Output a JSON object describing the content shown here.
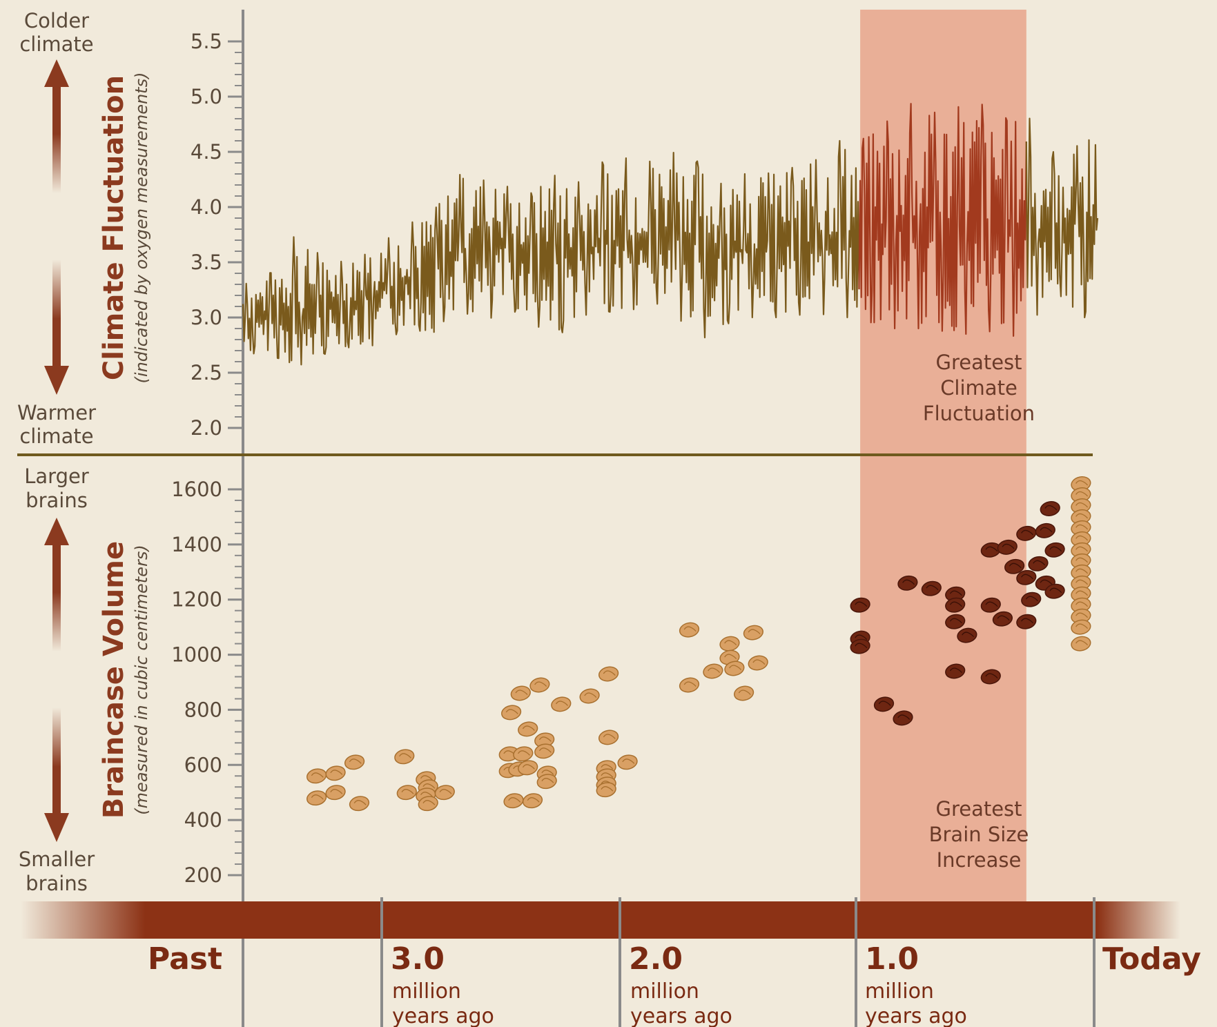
{
  "colors": {
    "background": "#f1eadb",
    "climate_line": "#7a5a1c",
    "highlight_band": "#e7a48b",
    "highlight_line": "#a23a1e",
    "timeline_bar": "#8c3215",
    "arrow": "#8b3a1f",
    "brain_light": "#d9a064",
    "brain_dark": "#6e2612",
    "axis": "#888888",
    "divider": "#6f5a1e",
    "text": "#5a4a3a",
    "timeline_text": "#7a2a12"
  },
  "climate_panel": {
    "title": "Climate Fluctuation",
    "subtitle": "(indicated by oxygen measurements)",
    "top_label": [
      "Colder",
      "climate"
    ],
    "bottom_label": [
      "Warmer",
      "climate"
    ],
    "band_label": [
      "Greatest",
      "Climate",
      "Fluctuation"
    ]
  },
  "brain_panel": {
    "title": "Braincase Volume",
    "subtitle": "(measured in cubic centimeters)",
    "top_label": [
      "Larger",
      "brains"
    ],
    "bottom_label": [
      "Smaller",
      "brains"
    ],
    "band_label": [
      "Greatest",
      "Brain Size",
      "Increase"
    ]
  },
  "timeline": {
    "past_label": "Past",
    "today_label": "Today",
    "ticks": [
      {
        "value": "3.0",
        "line1": "million",
        "line2": "years ago"
      },
      {
        "value": "2.0",
        "line1": "million",
        "line2": "years ago"
      },
      {
        "value": "1.0",
        "line1": "million",
        "line2": "years ago"
      }
    ]
  },
  "chart_data": [
    {
      "type": "line",
      "title": "Climate Fluctuation",
      "ylabel": "(indicated by oxygen measurements)",
      "xlabel": "million years ago",
      "xlim": [
        3.6,
        0
      ],
      "ylim": [
        1.8,
        5.6
      ],
      "y_ticks": [
        2.0,
        2.5,
        3.0,
        3.5,
        4.0,
        4.5,
        5.0,
        5.5
      ],
      "highlight_range": [
        1.0,
        0.3
      ],
      "x": [
        3.6,
        3.5,
        3.4,
        3.3,
        3.2,
        3.1,
        3.0,
        2.9,
        2.8,
        2.7,
        2.6,
        2.5,
        2.4,
        2.3,
        2.2,
        2.1,
        2.0,
        1.9,
        1.8,
        1.7,
        1.6,
        1.5,
        1.4,
        1.3,
        1.2,
        1.1,
        1.0,
        0.9,
        0.8,
        0.7,
        0.6,
        0.5,
        0.4,
        0.3,
        0.2,
        0.1,
        0.0
      ],
      "series": [
        {
          "mean": [
            2.95,
            3.0,
            3.05,
            3.05,
            3.1,
            3.15,
            3.25,
            3.35,
            3.45,
            3.6,
            3.6,
            3.65,
            3.6,
            3.6,
            3.6,
            3.65,
            3.7,
            3.7,
            3.75,
            3.75,
            3.6,
            3.6,
            3.6,
            3.65,
            3.65,
            3.7,
            3.75,
            3.75,
            3.8,
            3.75,
            3.8,
            3.8,
            3.75,
            3.75,
            3.8,
            3.85,
            3.9
          ],
          "low": [
            2.65,
            2.7,
            2.55,
            2.6,
            2.75,
            2.7,
            2.8,
            2.9,
            2.85,
            3.1,
            2.95,
            3.05,
            3.05,
            2.75,
            3.0,
            3.05,
            3.05,
            3.1,
            3.15,
            2.75,
            2.9,
            3.0,
            3.0,
            3.0,
            3.05,
            3.0,
            3.0,
            2.9,
            2.9,
            2.9,
            2.85,
            2.85,
            2.9,
            2.75,
            3.35,
            3.0,
            3.0
          ],
          "high": [
            3.3,
            3.35,
            3.75,
            3.6,
            3.5,
            3.55,
            3.7,
            3.85,
            3.95,
            4.3,
            4.25,
            4.2,
            4.1,
            4.3,
            4.2,
            4.4,
            4.45,
            4.4,
            4.5,
            4.45,
            4.2,
            4.3,
            4.3,
            4.35,
            4.4,
            4.6,
            4.6,
            4.75,
            4.95,
            4.85,
            4.9,
            4.95,
            4.8,
            4.85,
            4.5,
            4.5,
            4.9
          ]
        }
      ]
    },
    {
      "type": "scatter",
      "title": "Braincase Volume",
      "ylabel": "(measured in cubic centimeters)",
      "xlabel": "million years ago",
      "xlim": [
        3.6,
        0
      ],
      "ylim": [
        120,
        1720
      ],
      "y_ticks": [
        200,
        400,
        600,
        800,
        1000,
        1200,
        1400,
        1600
      ],
      "highlight_range": [
        1.0,
        0.3
      ],
      "series": [
        {
          "name": "",
          "color": "#d9a064",
          "points": [
            [
              3.29,
              560
            ],
            [
              3.21,
              570
            ],
            [
              3.13,
              610
            ],
            [
              3.29,
              480
            ],
            [
              3.21,
              500
            ],
            [
              3.11,
              460
            ],
            [
              2.92,
              630
            ],
            [
              2.91,
              500
            ],
            [
              2.83,
              550
            ],
            [
              2.82,
              520
            ],
            [
              2.83,
              490
            ],
            [
              2.82,
              460
            ],
            [
              2.75,
              500
            ],
            [
              2.43,
              860
            ],
            [
              2.35,
              890
            ],
            [
              2.26,
              820
            ],
            [
              2.14,
              850
            ],
            [
              2.06,
              930
            ],
            [
              2.47,
              790
            ],
            [
              2.4,
              730
            ],
            [
              2.33,
              690
            ],
            [
              2.33,
              650
            ],
            [
              2.06,
              700
            ],
            [
              2.48,
              640
            ],
            [
              2.42,
              640
            ],
            [
              2.48,
              580
            ],
            [
              2.44,
              585
            ],
            [
              2.4,
              590
            ],
            [
              2.32,
              570
            ],
            [
              2.32,
              540
            ],
            [
              2.07,
              590
            ],
            [
              2.07,
              560
            ],
            [
              2.07,
              530
            ],
            [
              2.07,
              510
            ],
            [
              1.98,
              610
            ],
            [
              2.46,
              470
            ],
            [
              2.38,
              470
            ],
            [
              1.72,
              1090
            ],
            [
              1.72,
              890
            ],
            [
              1.62,
              940
            ],
            [
              1.55,
              1040
            ],
            [
              1.55,
              990
            ],
            [
              1.53,
              950
            ],
            [
              1.45,
              1080
            ],
            [
              1.43,
              970
            ],
            [
              1.49,
              860
            ],
            [
              0.07,
              1620
            ],
            [
              0.07,
              1580
            ],
            [
              0.07,
              1540
            ],
            [
              0.07,
              1500
            ],
            [
              0.07,
              1460
            ],
            [
              0.07,
              1420
            ],
            [
              0.07,
              1380
            ],
            [
              0.07,
              1340
            ],
            [
              0.07,
              1300
            ],
            [
              0.07,
              1260
            ],
            [
              0.07,
              1220
            ],
            [
              0.07,
              1180
            ],
            [
              0.07,
              1140
            ],
            [
              0.07,
              1100
            ],
            [
              0.07,
              1040
            ]
          ]
        },
        {
          "name": "",
          "color": "#6e2612",
          "points": [
            [
              1.0,
              1180
            ],
            [
              1.0,
              1060
            ],
            [
              1.0,
              1030
            ],
            [
              0.9,
              820
            ],
            [
              0.82,
              770
            ],
            [
              0.8,
              1260
            ],
            [
              0.7,
              1240
            ],
            [
              0.6,
              1220
            ],
            [
              0.6,
              1180
            ],
            [
              0.6,
              1120
            ],
            [
              0.55,
              1070
            ],
            [
              0.6,
              940
            ],
            [
              0.45,
              1380
            ],
            [
              0.38,
              1390
            ],
            [
              0.3,
              1440
            ],
            [
              0.22,
              1450
            ],
            [
              0.2,
              1530
            ],
            [
              0.18,
              1380
            ],
            [
              0.35,
              1320
            ],
            [
              0.3,
              1280
            ],
            [
              0.25,
              1330
            ],
            [
              0.22,
              1260
            ],
            [
              0.18,
              1230
            ],
            [
              0.28,
              1200
            ],
            [
              0.45,
              1180
            ],
            [
              0.4,
              1130
            ],
            [
              0.3,
              1120
            ],
            [
              0.45,
              920
            ]
          ]
        }
      ]
    }
  ]
}
